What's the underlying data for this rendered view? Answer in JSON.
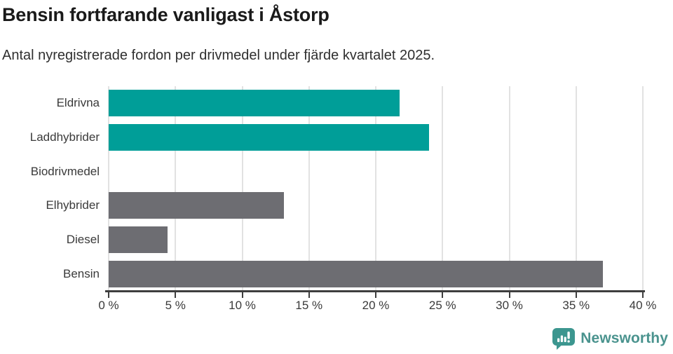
{
  "header": {
    "title": "Bensin fortfarande vanligast i Åstorp",
    "subtitle": "Antal nyregistrerade fordon per drivmedel under fjärde kvartalet 2025."
  },
  "chart_data": {
    "type": "bar",
    "orientation": "horizontal",
    "title": "Bensin fortfarande vanligast i Åstorp",
    "subtitle": "Antal nyregistrerade fordon per drivmedel under fjärde kvartalet 2025.",
    "categories": [
      "Eldrivna",
      "Laddhybrider",
      "Biodrivmedel",
      "Elhybrider",
      "Diesel",
      "Bensin"
    ],
    "values": [
      21.8,
      24.0,
      0,
      13.1,
      4.4,
      37.0
    ],
    "unit": "%",
    "bar_colors": [
      "#009E98",
      "#009E98",
      "#009E98",
      "#6D6D72",
      "#6D6D72",
      "#6D6D72"
    ],
    "xlim": [
      0,
      40
    ],
    "x_ticks": [
      0,
      5,
      10,
      15,
      20,
      25,
      30,
      35,
      40
    ],
    "x_tick_labels": [
      "0 %",
      "5 %",
      "10 %",
      "15 %",
      "20 %",
      "25 %",
      "30 %",
      "35 %",
      "40 %"
    ],
    "grid": "vertical",
    "grid_color": "#E2E2E2",
    "axis_color": "#3E3E3E",
    "legend": "none"
  },
  "branding": {
    "logo_text": "Newsworthy",
    "logo_icon": "newsworthy-speech-bubble-bar-chart-icon",
    "icon_color": "#3C968F",
    "text_color": "#4A938E"
  },
  "colors": {
    "accent_teal": "#009E98",
    "neutral_gray": "#6D6D72",
    "title_text": "#1A1A1A",
    "body_text": "#3A3A3A",
    "background": "#FFFFFF"
  }
}
